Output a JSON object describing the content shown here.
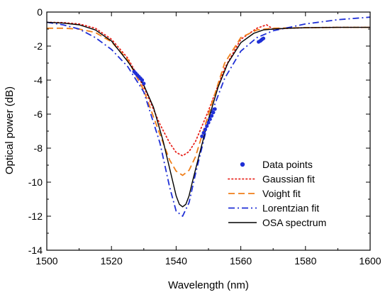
{
  "chart_data": {
    "type": "line",
    "xlabel": "Wavelength (nm)",
    "ylabel": "Optical power (dB)",
    "xlim": [
      1500,
      1600
    ],
    "ylim": [
      -14,
      0
    ],
    "xticks": [
      1500,
      1520,
      1540,
      1560,
      1580,
      1600
    ],
    "yticks": [
      0,
      -2,
      -4,
      -6,
      -8,
      -10,
      -12,
      -14
    ],
    "grid": false,
    "legend_position": "lower-right",
    "series": [
      {
        "name": "Data points",
        "style": "markers",
        "color": "#1f2fd6",
        "x": [
          1527.0,
          1527.5,
          1528.0,
          1528.5,
          1529.0,
          1529.5,
          1530.0,
          1548.0,
          1548.5,
          1549.0,
          1549.5,
          1550.0,
          1550.5,
          1551.0,
          1551.5,
          1552.0,
          1565.5,
          1566.0,
          1566.3,
          1566.6,
          1567.0
        ],
        "y": [
          -3.5,
          -3.6,
          -3.7,
          -3.8,
          -3.9,
          -4.0,
          -4.2,
          -7.3,
          -7.1,
          -6.9,
          -6.7,
          -6.5,
          -6.3,
          -6.1,
          -5.9,
          -5.7,
          -1.75,
          -1.7,
          -1.65,
          -1.6,
          -1.55
        ]
      },
      {
        "name": "Gaussian fit",
        "style": "dotted",
        "color": "#e8231c",
        "x": [
          1500,
          1505,
          1510,
          1515,
          1520,
          1525,
          1530,
          1535,
          1538,
          1540,
          1542,
          1544,
          1546,
          1550,
          1555,
          1560,
          1565,
          1568,
          1570,
          1575,
          1580,
          1590,
          1600
        ],
        "y": [
          -0.6,
          -0.62,
          -0.7,
          -0.95,
          -1.6,
          -2.7,
          -4.4,
          -6.6,
          -7.7,
          -8.25,
          -8.45,
          -8.2,
          -7.6,
          -5.8,
          -3.3,
          -1.6,
          -0.95,
          -0.75,
          -1.0,
          -0.95,
          -0.92,
          -0.9,
          -0.9
        ]
      },
      {
        "name": "Voight fit",
        "style": "dashed",
        "color": "#f07f1a",
        "x": [
          1500,
          1505,
          1510,
          1515,
          1520,
          1525,
          1530,
          1535,
          1538,
          1540,
          1542,
          1544,
          1546,
          1550,
          1555,
          1560,
          1565,
          1570,
          1575,
          1580,
          1590,
          1600
        ],
        "y": [
          -0.95,
          -0.95,
          -1.0,
          -1.2,
          -1.75,
          -2.8,
          -4.6,
          -7.2,
          -8.7,
          -9.35,
          -9.6,
          -9.3,
          -8.5,
          -6.0,
          -3.0,
          -1.5,
          -1.05,
          -0.95,
          -0.93,
          -0.92,
          -0.9,
          -0.9
        ]
      },
      {
        "name": "Lorentzian fit",
        "style": "dashdot",
        "color": "#1f2fd6",
        "x": [
          1500,
          1505,
          1510,
          1515,
          1520,
          1525,
          1530,
          1535,
          1538,
          1540,
          1542,
          1544,
          1546,
          1550,
          1555,
          1560,
          1565,
          1570,
          1575,
          1580,
          1590,
          1600
        ],
        "y": [
          -0.6,
          -0.75,
          -1.0,
          -1.5,
          -2.2,
          -3.2,
          -4.7,
          -7.7,
          -10.3,
          -11.7,
          -12.0,
          -11.2,
          -9.5,
          -6.4,
          -3.9,
          -2.3,
          -1.5,
          -1.1,
          -0.9,
          -0.7,
          -0.45,
          -0.3
        ]
      },
      {
        "name": "OSA spectrum",
        "style": "solid",
        "color": "#000000",
        "x": [
          1500,
          1505,
          1510,
          1515,
          1520,
          1525,
          1528,
          1530,
          1533,
          1536,
          1538,
          1540,
          1541,
          1542,
          1543,
          1544,
          1545,
          1547,
          1550,
          1553,
          1556,
          1560,
          1564,
          1567,
          1570,
          1575,
          1580,
          1590,
          1600
        ],
        "y": [
          -0.6,
          -0.65,
          -0.75,
          -1.05,
          -1.7,
          -2.9,
          -3.7,
          -4.3,
          -5.6,
          -7.6,
          -9.2,
          -10.8,
          -11.3,
          -11.45,
          -11.3,
          -10.8,
          -10.0,
          -8.5,
          -6.3,
          -4.4,
          -3.0,
          -1.8,
          -1.25,
          -1.05,
          -1.0,
          -0.95,
          -0.92,
          -0.9,
          -0.9
        ]
      }
    ]
  }
}
